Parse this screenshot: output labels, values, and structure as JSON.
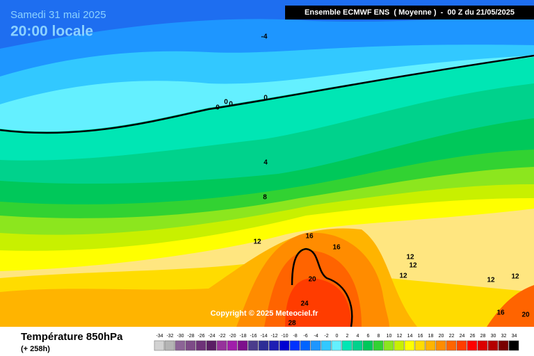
{
  "header": {
    "date": "Samedi 31 mai 2025",
    "time": "20:00 locale",
    "model": "Ensemble ECMWF ENS  ( Moyenne )  -  00 Z du 21/05/2025"
  },
  "footer": {
    "title": "Température 850hPa",
    "lead": "(+ 258h)",
    "copyright": "Copyright © 2025 Meteociel.fr"
  },
  "legend": {
    "values": [
      -34,
      -32,
      -30,
      -28,
      -26,
      -24,
      -22,
      -20,
      -18,
      -16,
      -14,
      -12,
      -10,
      -8,
      -6,
      -4,
      -2,
      0,
      2,
      4,
      6,
      8,
      10,
      12,
      14,
      16,
      18,
      20,
      22,
      24,
      26,
      28,
      30,
      32,
      34
    ],
    "colors": [
      "#d2d2d2",
      "#b4b4b4",
      "#8c6496",
      "#7d4b87",
      "#6e3278",
      "#5a1e64",
      "#96329b",
      "#a01eaa",
      "#7d0f8c",
      "#4b3c8c",
      "#2d2d96",
      "#1e1eb4",
      "#0000d2",
      "#0032ff",
      "#0064ff",
      "#1e96ff",
      "#32c8ff",
      "#64f0ff",
      "#00e6b4",
      "#00d28c",
      "#00c85a",
      "#32d232",
      "#8ce61e",
      "#c8f000",
      "#ffff00",
      "#ffdc00",
      "#ffb400",
      "#ff8c00",
      "#ff6400",
      "#ff3c00",
      "#ff0000",
      "#dc0000",
      "#b40000",
      "#780000",
      "#000000"
    ]
  },
  "contours": [
    -4,
    0,
    0,
    0,
    0,
    4,
    8,
    12,
    16,
    16,
    12,
    12,
    12,
    20,
    12,
    12,
    24,
    16,
    20,
    28
  ]
}
